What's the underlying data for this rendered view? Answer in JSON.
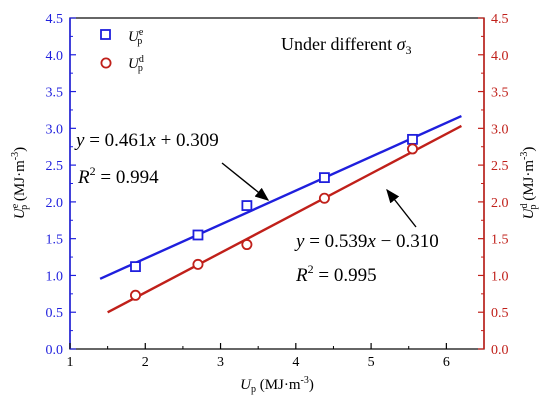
{
  "chart_data": {
    "type": "scatter",
    "title": "Under different σ₃",
    "annotation": "Under different σ₃",
    "xlabel": "Up (MJ·m⁻³)",
    "ylabel_left": "Uep (MJ·m⁻³)",
    "ylabel_right": "Udp (MJ·m⁻³)",
    "xlim": [
      1,
      6.5
    ],
    "ylim": [
      0,
      4.5
    ],
    "x_ticks": [
      1,
      2,
      3,
      4,
      5,
      6
    ],
    "y_ticks": [
      0.0,
      0.5,
      1.0,
      1.5,
      2.0,
      2.5,
      3.0,
      3.5,
      4.0,
      4.5
    ],
    "legend_position": "top-left",
    "grid": false,
    "series": [
      {
        "name": "Uep",
        "color": "#1f1fdd",
        "marker": "square",
        "x": [
          1.87,
          2.7,
          3.35,
          4.38,
          5.55
        ],
        "y": [
          1.12,
          1.55,
          1.95,
          2.33,
          2.85
        ],
        "fit": {
          "slope": 0.461,
          "intercept": 0.309,
          "x_range": [
            1.4,
            6.2
          ],
          "equation": "y = 0.461x + 0.309",
          "r2": "R² = 0.994"
        }
      },
      {
        "name": "Udp",
        "color": "#c0201a",
        "marker": "circle",
        "x": [
          1.87,
          2.7,
          3.35,
          4.38,
          5.55
        ],
        "y": [
          0.73,
          1.15,
          1.42,
          2.05,
          2.72
        ],
        "fit": {
          "slope": 0.539,
          "intercept": -0.31,
          "x_range": [
            1.5,
            6.2
          ],
          "equation": "y = 0.539x − 0.310",
          "r2": "R² = 0.995"
        }
      }
    ]
  }
}
